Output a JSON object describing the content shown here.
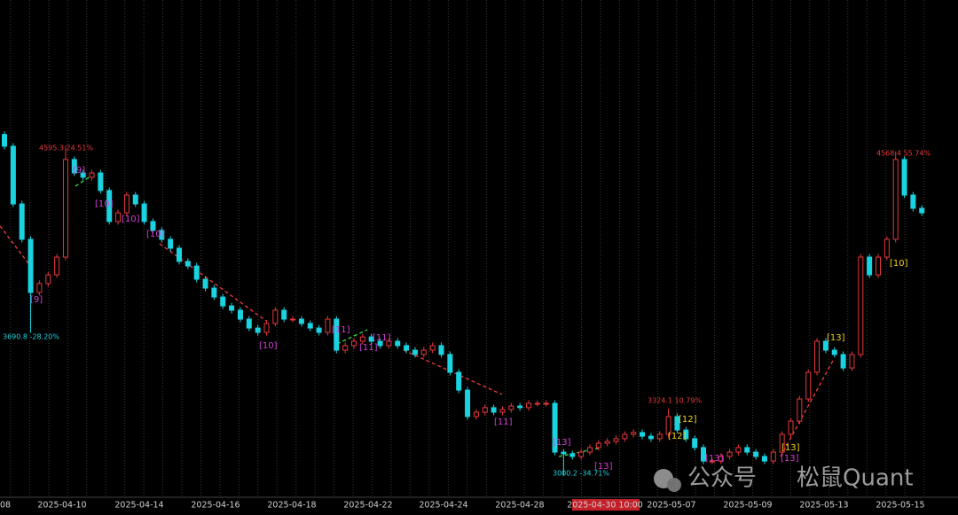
{
  "chart_data": {
    "type": "candlestick",
    "open": [
      4650,
      4593,
      4314,
      4143,
      3886,
      3929,
      3971,
      4057,
      4529,
      4464,
      4443,
      4464,
      4379,
      4229,
      4271,
      4357,
      4314,
      4229,
      4186,
      4143,
      4100,
      4036,
      4014,
      3950,
      3907,
      3864,
      3821,
      3800,
      3757,
      3714,
      3693,
      3736,
      3800,
      3757,
      3757,
      3736,
      3714,
      3693,
      3757,
      3607,
      3629,
      3650,
      3671,
      3650,
      3629,
      3650,
      3629,
      3607,
      3586,
      3607,
      3629,
      3586,
      3500,
      3414,
      3286,
      3307,
      3329,
      3307,
      3320,
      3337,
      3329,
      3350,
      3350,
      3350,
      3114,
      3106,
      3093,
      3114,
      3136,
      3157,
      3166,
      3179,
      3200,
      3209,
      3191,
      3179,
      3200,
      3286,
      3221,
      3179,
      3136,
      3071,
      3071,
      3093,
      3114,
      3136,
      3114,
      3093,
      3071,
      3114,
      3200,
      3264,
      3371,
      3500,
      3650,
      3607,
      3586,
      3521,
      3586,
      4057,
      3971,
      4057,
      4143,
      4529,
      4357,
      4293
    ],
    "high": [
      4665,
      4608,
      4329,
      4158,
      3944,
      3986,
      4072,
      4595,
      4544,
      4479,
      4479,
      4479,
      4394,
      4286,
      4372,
      4372,
      4329,
      4244,
      4201,
      4158,
      4115,
      4051,
      4029,
      3965,
      3922,
      3879,
      3836,
      3815,
      3772,
      3729,
      3751,
      3815,
      3815,
      3772,
      3772,
      3751,
      3729,
      3772,
      3772,
      3644,
      3665,
      3686,
      3686,
      3665,
      3665,
      3665,
      3644,
      3622,
      3622,
      3644,
      3644,
      3601,
      3515,
      3429,
      3322,
      3344,
      3344,
      3335,
      3352,
      3352,
      3365,
      3365,
      3365,
      3365,
      3129,
      3121,
      3129,
      3151,
      3172,
      3181,
      3194,
      3215,
      3224,
      3224,
      3206,
      3215,
      3324,
      3301,
      3236,
      3194,
      3151,
      3086,
      3108,
      3129,
      3151,
      3151,
      3129,
      3108,
      3129,
      3215,
      3279,
      3386,
      3515,
      3665,
      3665,
      3622,
      3601,
      3601,
      4072,
      4072,
      4072,
      4158,
      4568,
      4544,
      4372,
      4308
    ],
    "low": [
      4578,
      4299,
      4128,
      3691,
      3871,
      3914,
      3956,
      4042,
      4449,
      4428,
      4428,
      4364,
      4214,
      4214,
      4256,
      4299,
      4214,
      4171,
      4128,
      4085,
      4021,
      3999,
      3935,
      3892,
      3849,
      3806,
      3785,
      3742,
      3699,
      3678,
      3678,
      3721,
      3742,
      3742,
      3721,
      3699,
      3678,
      3678,
      3592,
      3592,
      3614,
      3635,
      3635,
      3614,
      3614,
      3614,
      3592,
      3571,
      3571,
      3592,
      3571,
      3485,
      3399,
      3271,
      3271,
      3292,
      3292,
      3292,
      3305,
      3314,
      3314,
      3335,
      3335,
      3099,
      3000,
      3078,
      3078,
      3099,
      3121,
      3142,
      3151,
      3164,
      3185,
      3176,
      3164,
      3164,
      3185,
      3206,
      3164,
      3121,
      3056,
      3056,
      3056,
      3078,
      3099,
      3099,
      3078,
      3056,
      3056,
      3099,
      3185,
      3249,
      3356,
      3485,
      3592,
      3571,
      3506,
      3506,
      3571,
      3956,
      3956,
      4042,
      4128,
      4342,
      4278,
      4256
    ],
    "close": [
      4593,
      4314,
      4143,
      3886,
      3929,
      3971,
      4057,
      4529,
      4464,
      4443,
      4464,
      4379,
      4229,
      4271,
      4357,
      4314,
      4229,
      4186,
      4143,
      4100,
      4036,
      4014,
      3950,
      3907,
      3864,
      3821,
      3800,
      3757,
      3714,
      3693,
      3736,
      3800,
      3757,
      3757,
      3736,
      3714,
      3693,
      3757,
      3607,
      3629,
      3650,
      3671,
      3650,
      3629,
      3650,
      3629,
      3607,
      3586,
      3607,
      3629,
      3586,
      3500,
      3414,
      3286,
      3307,
      3329,
      3307,
      3320,
      3337,
      3329,
      3350,
      3350,
      3350,
      3114,
      3106,
      3093,
      3114,
      3136,
      3157,
      3166,
      3179,
      3200,
      3209,
      3191,
      3179,
      3200,
      3286,
      3221,
      3179,
      3136,
      3071,
      3071,
      3093,
      3114,
      3136,
      3114,
      3093,
      3071,
      3114,
      3200,
      3264,
      3371,
      3500,
      3650,
      3607,
      3586,
      3521,
      3586,
      4057,
      3971,
      4057,
      4143,
      4529,
      4357,
      4293,
      4271
    ],
    "up_color": "#e5383b",
    "down_color": "#1ad3e0",
    "ylim": [
      2900,
      5300
    ],
    "x_labels": [
      "08",
      "2025-04-10",
      "2025-04-14",
      "2025-04-16",
      "2025-04-18",
      "2025-04-22",
      "2025-04-24",
      "2025-04-28",
      "2025-04-30 10:00",
      "2025-05-07",
      "2025-05-09",
      "2025-05-13",
      "2025-05-15"
    ],
    "highlighted_x_label": 8,
    "price_labels": [
      {
        "text": "4595.3 24.51%",
        "color": "#e5383b"
      },
      {
        "text": "3690.8 -28.20%",
        "color": "#1ad3e0"
      },
      {
        "text": "3324.1 10.79%",
        "color": "#e5383b"
      },
      {
        "text": "3000.2 -34.71%",
        "color": "#1ad3e0"
      },
      {
        "text": "4568.4 55.74%",
        "color": "#e5383b"
      }
    ],
    "annotations": [
      {
        "text": "[9]",
        "color": "#d43fd4"
      },
      {
        "text": "[9]",
        "color": "#d43fd4"
      },
      {
        "text": "[10]",
        "color": "#d43fd4"
      },
      {
        "text": "[10]",
        "color": "#d43fd4"
      },
      {
        "text": "[10]",
        "color": "#d43fd4"
      },
      {
        "text": "[10]",
        "color": "#d43fd4"
      },
      {
        "text": "[11]",
        "color": "#d43fd4"
      },
      {
        "text": "[11]",
        "color": "#d43fd4"
      },
      {
        "text": "[11]",
        "color": "#d43fd4"
      },
      {
        "text": "[11]",
        "color": "#d43fd4"
      },
      {
        "text": "[13]",
        "color": "#d43fd4"
      },
      {
        "text": "[13]",
        "color": "#d43fd4"
      },
      {
        "text": "[13]",
        "color": "#d43fd4"
      },
      {
        "text": "[13]",
        "color": "#d43fd4"
      },
      {
        "text": "[13]",
        "color": "#f2d21b"
      },
      {
        "text": "[12]",
        "color": "#f2d21b"
      },
      {
        "text": "[12]",
        "color": "#f2d21b"
      },
      {
        "text": "[13]",
        "color": "#f2d21b"
      },
      {
        "text": "[10]",
        "color": "#f2d21b"
      }
    ],
    "watermark": [
      "公众号",
      "松鼠Quant"
    ]
  }
}
